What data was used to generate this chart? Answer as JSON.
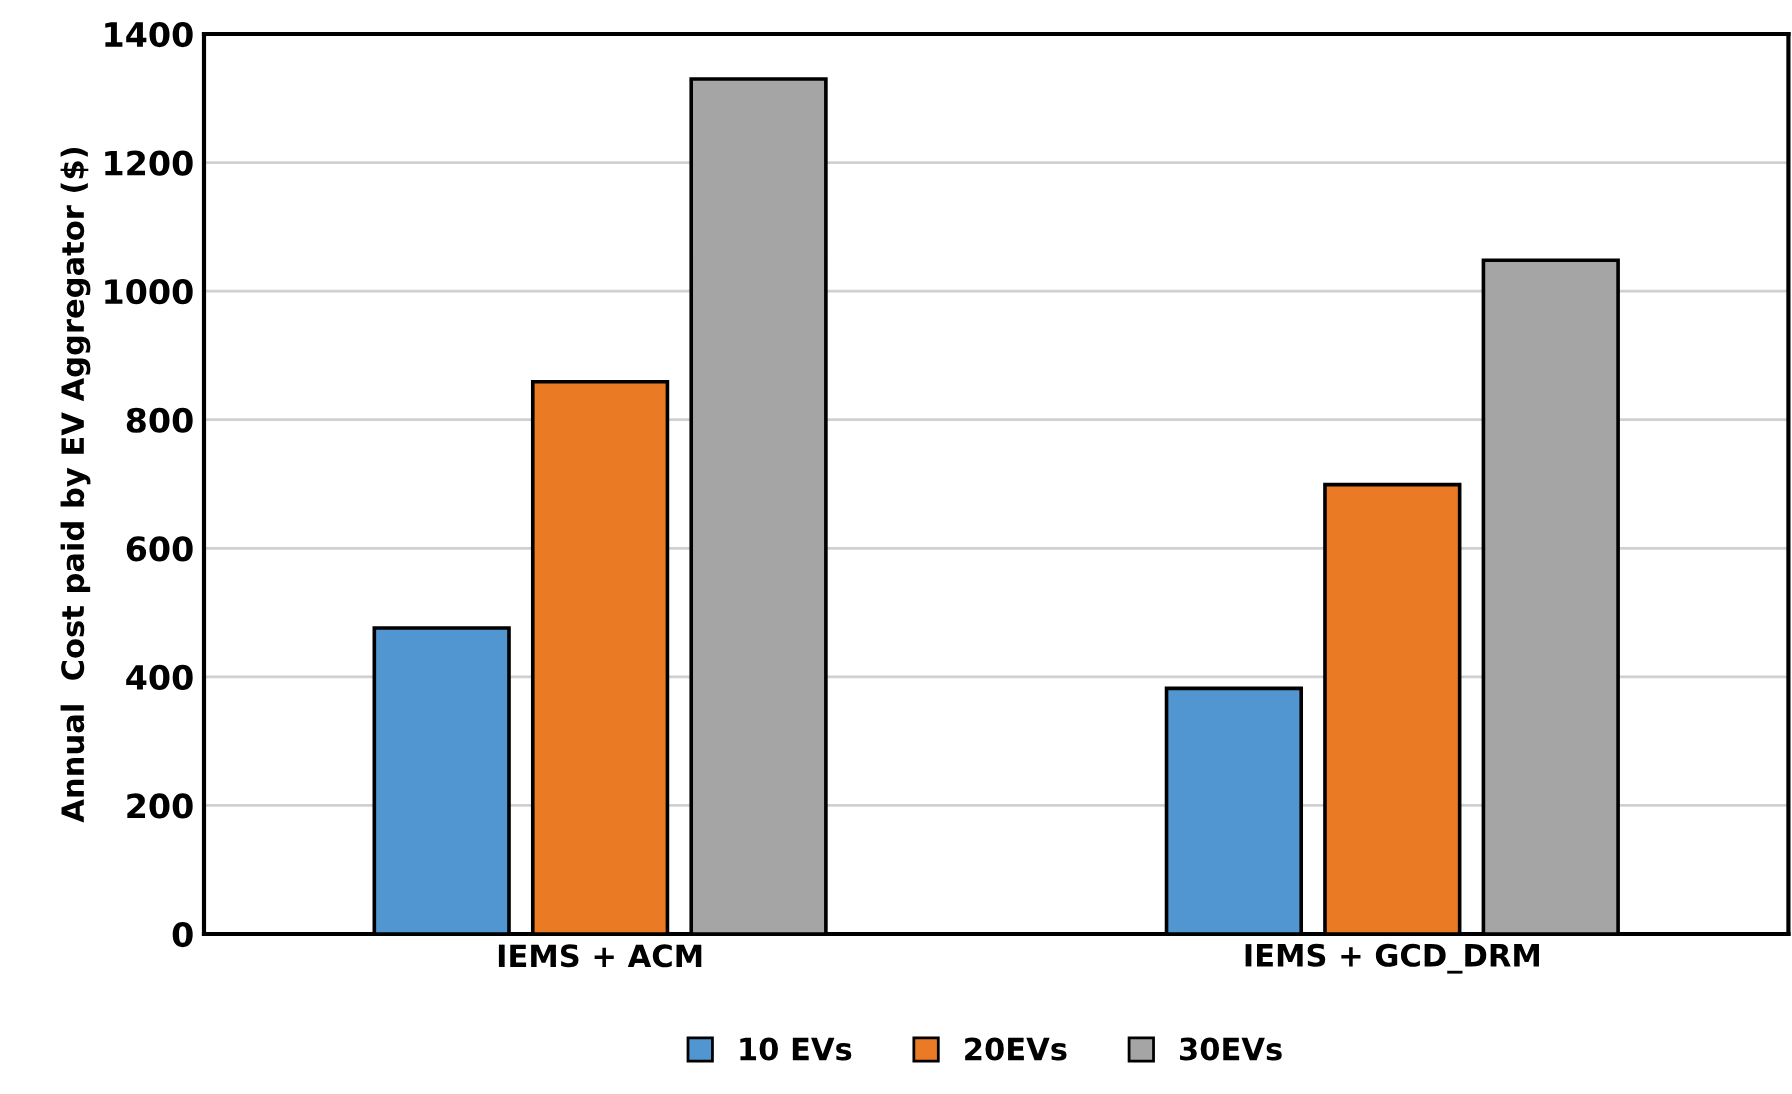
{
  "chart_data": {
    "type": "bar",
    "ylabel": "Annual  Cost paid by EV Aggregator ($)",
    "categories": [
      "IEMS + ACM",
      "IEMS + GCD_DRM"
    ],
    "series": [
      {
        "name": "10 EVs",
        "color": "#5196d0",
        "values": [
          476,
          382
        ]
      },
      {
        "name": "20EVs",
        "color": "#eb7a25",
        "values": [
          859,
          699
        ]
      },
      {
        "name": "30EVs",
        "color": "#a5a5a5",
        "values": [
          1330,
          1048
        ]
      }
    ],
    "ylim": [
      0,
      1400
    ],
    "yticks": [
      0,
      200,
      400,
      600,
      800,
      1000,
      1200,
      1400
    ],
    "grid": "y",
    "legend": "bottom"
  }
}
